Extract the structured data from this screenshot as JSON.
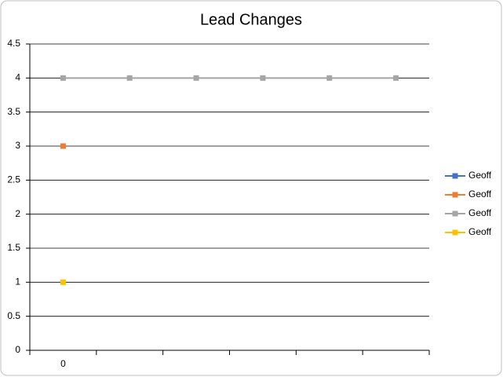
{
  "chart_data": {
    "type": "line",
    "title": "Lead Changes",
    "categories": [
      "0",
      null,
      null,
      null,
      null,
      null
    ],
    "series": [
      {
        "name": "Geoff",
        "color": "#4472c4",
        "values": [
          null,
          null,
          null,
          null,
          null,
          null
        ]
      },
      {
        "name": "Geoff",
        "color": "#ed7d31",
        "values": [
          3,
          null,
          null,
          null,
          null,
          null
        ]
      },
      {
        "name": "Geoff",
        "color": "#a5a5a5",
        "values": [
          4,
          4,
          4,
          4,
          4,
          4
        ]
      },
      {
        "name": "Geoff",
        "color": "#ffc000",
        "values": [
          1,
          null,
          null,
          null,
          null,
          null
        ]
      }
    ],
    "ylim": [
      0,
      4.5
    ],
    "yticks": [
      0,
      0.5,
      1,
      1.5,
      2,
      2.5,
      3,
      3.5,
      4,
      4.5
    ],
    "grid": true,
    "legend": "right"
  }
}
